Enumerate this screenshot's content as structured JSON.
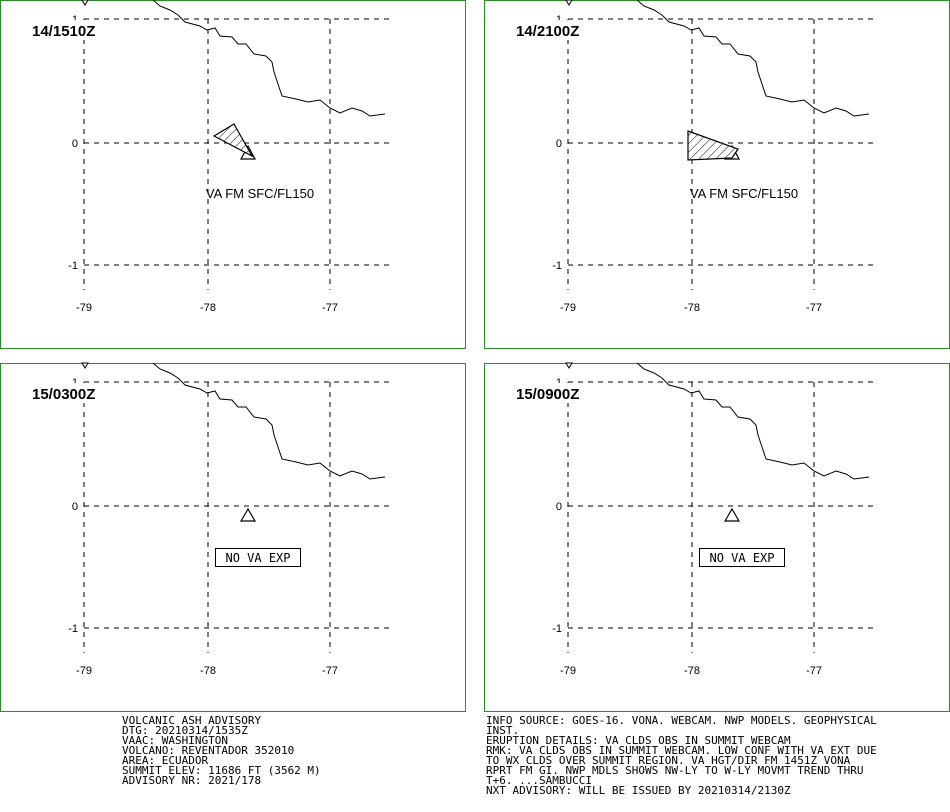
{
  "grid_labels": {
    "lon": [
      "-79",
      "-78",
      "-77"
    ],
    "lat": [
      "1",
      "0",
      "-1"
    ]
  },
  "panels": [
    {
      "title": "14/1510Z",
      "ash_label": "VA FM SFC/FL150",
      "ash": true,
      "no_va": false
    },
    {
      "title": "14/2100Z",
      "ash_label": "VA FM SFC/FL150",
      "ash": true,
      "no_va": false
    },
    {
      "title": "15/0300Z",
      "ash_label": "NO VA EXP",
      "ash": false,
      "no_va": true
    },
    {
      "title": "15/0900Z",
      "ash_label": "NO VA EXP",
      "ash": false,
      "no_va": true
    }
  ],
  "advisory": {
    "left": [
      "VOLCANIC ASH ADVISORY",
      "DTG: 20210314/1535Z",
      "VAAC: WASHINGTON",
      "VOLCANO: REVENTADOR 352010",
      "AREA: ECUADOR",
      "SUMMIT ELEV: 11686 FT (3562 M)",
      "ADVISORY NR: 2021/178"
    ],
    "right": [
      "INFO SOURCE: GOES-16. VONA. WEBCAM. NWP MODELS. GEOPHYSICAL",
      "INST.",
      "ERUPTION DETAILS: VA CLDS OBS IN SUMMIT WEBCAM",
      "RMK: VA CLDS OBS IN SUMMIT WEBCAM. LOW CONF WITH VA EXT DUE",
      "TO WX CLDS OVER SUMMIT REGION. VA HGT/DIR FM 1451Z VONA",
      "RPRT FM GI. NWP MDLS SHOWS NW-LY TO W-LY MOVMT TREND THRU",
      "T+6. ...SAMBUCCI",
      "NXT ADVISORY: WILL BE ISSUED BY 20210314/2130Z"
    ]
  },
  "colors": {
    "frame": "#2a8a2a",
    "ink": "#000000"
  }
}
